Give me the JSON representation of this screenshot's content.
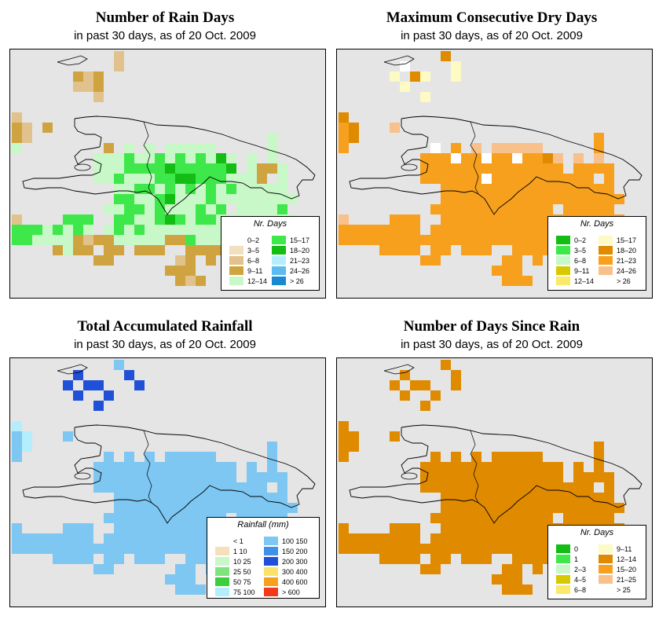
{
  "panels": [
    {
      "title": "Number of Rain Days",
      "subtitle": "in past 30 days, as of  20 Oct. 2009",
      "legend": {
        "title": "Nr. Days",
        "items": [
          {
            "label": "0–2",
            "color": "#ffffff"
          },
          {
            "label": "3–5",
            "color": "#f2dfbf"
          },
          {
            "label": "6–8",
            "color": "#e2c28c"
          },
          {
            "label": "9–11",
            "color": "#cfa440"
          },
          {
            "label": "12–14",
            "color": "#c8f7c8"
          },
          {
            "label": "15–17",
            "color": "#3fe84a"
          },
          {
            "label": "18–20",
            "color": "#13bd13"
          },
          {
            "label": "21–23",
            "color": "#b4eefc"
          },
          {
            "label": "24–26",
            "color": "#5cbbef"
          },
          {
            "label": "> 26",
            "color": "#1989d4"
          }
        ]
      }
    },
    {
      "title": "Maximum Consecutive Dry Days",
      "subtitle": "in past 30 days, as of  20 Oct. 2009",
      "legend": {
        "title": "Nr. Days",
        "items": [
          {
            "label": "0–2",
            "color": "#13bd13"
          },
          {
            "label": "3–5",
            "color": "#3fe84a"
          },
          {
            "label": "6–8",
            "color": "#c8f7c8"
          },
          {
            "label": "9–11",
            "color": "#d8c800"
          },
          {
            "label": "12–14",
            "color": "#fbe96a"
          },
          {
            "label": "15–17",
            "color": "#fdfac4"
          },
          {
            "label": "18–20",
            "color": "#e08a00"
          },
          {
            "label": "21–23",
            "color": "#f7a01e"
          },
          {
            "label": "24–26",
            "color": "#f8c08a"
          },
          {
            "label": "> 26",
            "color": "#ffffff"
          }
        ]
      }
    },
    {
      "title": "Total Accumulated Rainfall",
      "subtitle": "in past 30 days, as of  20 Oct. 2009",
      "legend": {
        "title": "Rainfall (mm)",
        "items": [
          {
            "label": "< 1",
            "color": "#ffffff"
          },
          {
            "label": "1    10",
            "color": "#f6e0bc"
          },
          {
            "label": "10   25",
            "color": "#c8f7c8"
          },
          {
            "label": "25   50",
            "color": "#7fe47f"
          },
          {
            "label": "50   75",
            "color": "#3ccf3c"
          },
          {
            "label": "75  100",
            "color": "#b4eefc"
          },
          {
            "label": "100  150",
            "color": "#7dc7f2"
          },
          {
            "label": "150  200",
            "color": "#3e90e8"
          },
          {
            "label": "200  300",
            "color": "#2050d8"
          },
          {
            "label": "300  400",
            "color": "#fbe36a"
          },
          {
            "label": "400  600",
            "color": "#f7a01e"
          },
          {
            "label": "> 600",
            "color": "#f23a1a"
          }
        ]
      }
    },
    {
      "title": "Number of Days Since Rain",
      "subtitle": "in past 30 days, as of  20 Oct. 2009",
      "legend": {
        "title": "Nr. Days",
        "items": [
          {
            "label": "0",
            "color": "#13bd13"
          },
          {
            "label": "1",
            "color": "#3fe84a"
          },
          {
            "label": "2–3",
            "color": "#c8f7c8"
          },
          {
            "label": "4–5",
            "color": "#d8c800"
          },
          {
            "label": "6–8",
            "color": "#fbe96a"
          },
          {
            "label": "9–11",
            "color": "#fdfac4"
          },
          {
            "label": "12–14",
            "color": "#e08a00"
          },
          {
            "label": "15–20",
            "color": "#f7a01e"
          },
          {
            "label": "21–25",
            "color": "#f8c08a"
          },
          {
            "label": "> 25",
            "color": "#ffffff"
          }
        ]
      }
    }
  ],
  "grids": [
    [
      "..........2....................",
      "..........2....................",
      "......323......................",
      "......223......................",
      "........2......................",
      "...............................",
      "2..............................",
      "32.3...........................",
      "32.......................4.....",
      "4........3.4.4.44444.....4.....",
      "........44454454545464.4.4.....",
      "........44455556555556.4334....",
      "........44544455665554443.4....",
      "..........44554545454544444....",
      "..........554456444544444444...",
      ".........445545444545.44445....",
      "2....555..554456545544444444...",
      "55545454.45454444444443333444..",
      "55444432334444433544444444.45..",
      "....3433.33.333..33334.443.....",
      "........33......23.3.....5.....",
      "...............333.............",
      "................323............",
      "...............................",
      "..............................."
    ],
    [
      "..........6....................",
      "......9....:...................",
      ".....:.65..:...................",
      "......:........................",
      "........:......................",
      "...............................",
      "6..............................",
      "76...8.........................",
      "76.......................7.....",
      "7........9.7.8.88888.....7.....",
      "........77797797797768.8.8.....",
      "........77777777777777.7777....",
      "........77777797777777777.7....",
      "..........77777777777777777....",
      "..........777777777777777777...",
      ".........777777777777.77777....",
      "8....777..777777777777777777...",
      "77777777.77777777777777777777..",
      "77777777777777777777777777.77..",
      "....7777.77.777..77777.777.....",
      "........77......77.7.....7.....",
      "...............777.............",
      "................777............",
      "...............................",
      "..............................."
    ],
    [
      "..........6....................",
      "......8....8...................",
      ".....8.88...8..................",
      "......8..8.....................",
      "........8......................",
      "...............................",
      "5..............................",
      "65...6.........................",
      "65.......................6.....",
      "6........6.6.6.66666.....6.....",
      "........66666666666666.6.6.....",
      "........66666666666666.6666....",
      "........66666666666666666.6....",
      "..........66666666666666666....",
      "..........666666666666666666...",
      ".........666666666666.66666....",
      "6....666..666666666666666666...",
      "66666666.66666666666666666666..",
      "66666666666666666666666666.66..",
      "....6666.66.666..66666.666.....",
      "........66......66.6.....6.....",
      "...............666.............",
      "................666............",
      "...............................",
      "..............................."
    ],
    [
      "..........6....................",
      "......6....6...................",
      ".....6.66..6...................",
      "......6..6.....................",
      "........6......................",
      "...............................",
      "6..............................",
      "66...6.........................",
      "66.......................6.....",
      "6........6.6.6.66666.....6.....",
      "........66666666666666.6.6.....",
      "........66666666666666.6666....",
      "........66666666666666666.6....",
      "..........66666666666666666....",
      "..........666666666666666666...",
      ".........666666666666.66666....",
      "6....666..666666666666666666...",
      "66666666.66666666666666666666..",
      "66666666666666666666666666.66..",
      "....6666.66.666..66666.666.....",
      "........66......66.6.....6.....",
      "...............666.............",
      "................666............",
      "...............................",
      "..............................."
    ]
  ]
}
